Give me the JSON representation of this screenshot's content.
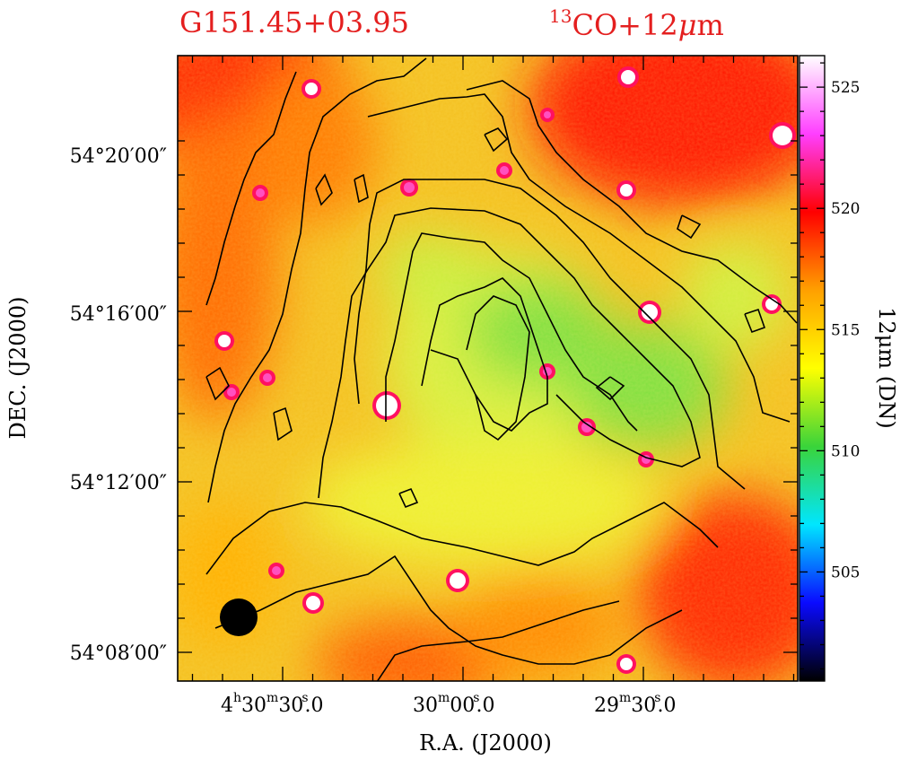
{
  "chart_data": {
    "type": "heatmap",
    "title": "G151.45+03.95",
    "subtitle": "13CO+12μm",
    "subtitle_parts": {
      "iso": "13",
      "text": "CO+12",
      "mu": "μ",
      "unit": "m"
    },
    "xlabel": "R.A.  (J2000)",
    "ylabel": "DEC.  (J2000)",
    "x_ticks": [
      {
        "h": "4",
        "m": "30",
        "s": "30",
        "f": ".0"
      },
      {
        "h": "",
        "m": "30",
        "s": "00",
        "f": ".0"
      },
      {
        "h": "",
        "m": "29",
        "s": "30",
        "f": ".0"
      }
    ],
    "y_ticks": [
      "54°20′00″",
      "54°16′00″",
      "54°12′00″",
      "54°08′00″"
    ],
    "colorbar": {
      "label": "12μm (DN)",
      "ticks": [
        525,
        520,
        515,
        510,
        505
      ],
      "range": [
        500.5,
        526.3
      ],
      "colors": [
        "#000000",
        "#0a0aff",
        "#00e6ff",
        "#3ad43a",
        "#ffff00",
        "#ffa000",
        "#ff0000",
        "#ff3eff",
        "#ffffff"
      ]
    },
    "contours": "13CO integrated intensity (black lines)",
    "beam": "filled circle, lower-left"
  }
}
